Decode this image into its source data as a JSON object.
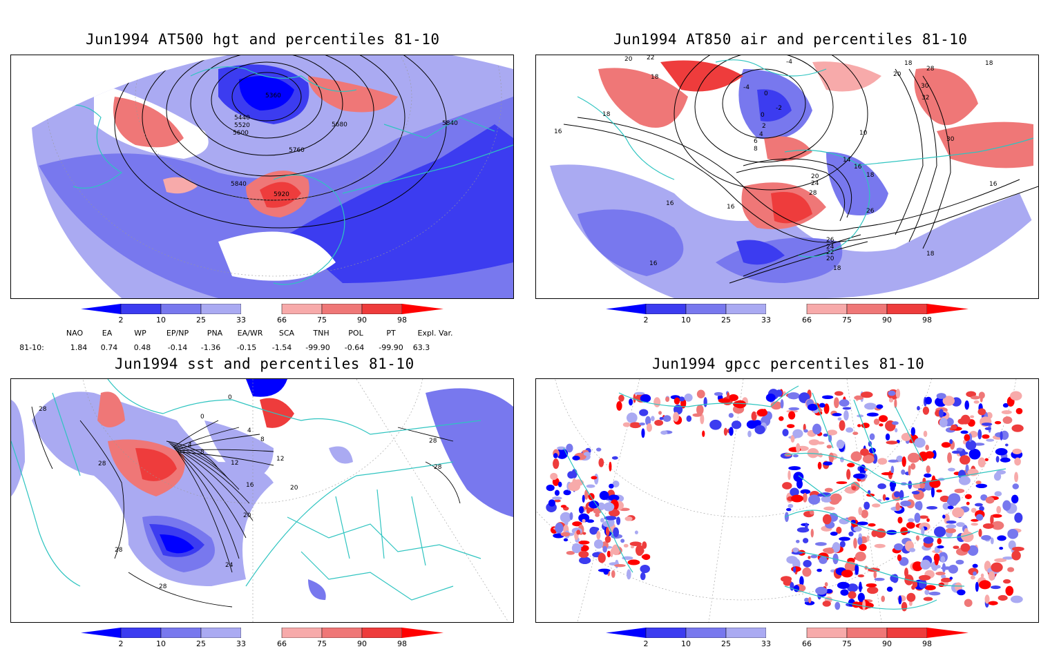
{
  "panels": [
    {
      "id": "hgt",
      "title": "Jun1994 AT500 hgt and percentiles 81-10",
      "contour_labels": [
        "5360",
        "5440",
        "5520",
        "5600",
        "5680",
        "5760",
        "5840",
        "5920",
        "5840"
      ]
    },
    {
      "id": "air",
      "title": "Jun1994 AT850 air and percentiles 81-10",
      "contour_labels": [
        "20",
        "22",
        "18",
        "18",
        "-4",
        "-4",
        "0",
        "-2",
        "0",
        "2",
        "4",
        "6",
        "8",
        "10",
        "14",
        "16",
        "18",
        "20",
        "24",
        "28",
        "26",
        "16",
        "16",
        "26",
        "24",
        "22",
        "20",
        "18",
        "18",
        "16",
        "18",
        "28",
        "20",
        "18",
        "30",
        "32",
        "30",
        "16",
        "16"
      ]
    },
    {
      "id": "sst",
      "title": "Jun1994 sst and percentiles 81-10",
      "contour_labels": [
        "28",
        "28",
        "0",
        "0",
        "4",
        "4",
        "8",
        "8",
        "12",
        "12",
        "16",
        "20",
        "20",
        "24",
        "28",
        "28",
        "28",
        "28"
      ]
    },
    {
      "id": "gpcc",
      "title": "Jun1994 gpcc percentiles 81-10",
      "contour_labels": []
    }
  ],
  "colorbar": {
    "ticks": [
      "2",
      "10",
      "25",
      "33",
      "66",
      "75",
      "90",
      "98"
    ],
    "colors": {
      "blue_dark": "#0000ff",
      "blue_mid": "#3c3cf0",
      "blue_light": "#7878ee",
      "blue_pale": "#aaaaf2",
      "red_pale": "#f7aaaa",
      "red_light": "#ef7777",
      "red_mid": "#ee3c3c",
      "red_dark": "#ff0000"
    }
  },
  "indices": {
    "headers": [
      "NAO",
      "EA",
      "WP",
      "EP/NP",
      "PNA",
      "EA/WR",
      "SCA",
      "TNH",
      "POL",
      "PT",
      "Expl. Var."
    ],
    "row_label": "81-10:",
    "values": [
      "1.84",
      "0.74",
      "0.48",
      "-0.14",
      "-1.36",
      "-0.15",
      "-1.54",
      "-99.90",
      "-0.64",
      "-99.90",
      "63.3"
    ]
  },
  "map_colors": {
    "coast": "#2ec4c0",
    "contour": "#000000",
    "grid": "#999999"
  }
}
